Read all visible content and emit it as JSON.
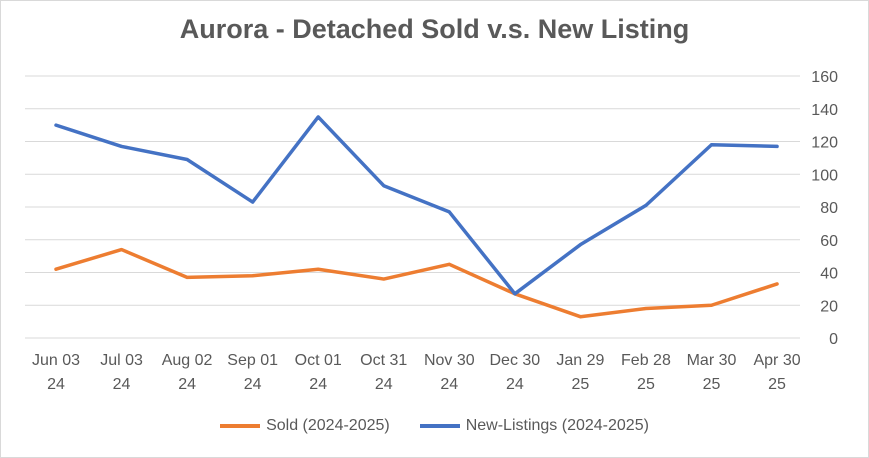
{
  "chart_data": {
    "type": "line",
    "title": "Aurora  - Detached Sold v.s. New Listing",
    "categories": [
      [
        "Jun 03",
        "24"
      ],
      [
        "Jul 03",
        "24"
      ],
      [
        "Aug 02",
        "24"
      ],
      [
        "Sep 01",
        "24"
      ],
      [
        "Oct 01",
        "24"
      ],
      [
        "Oct 31",
        "24"
      ],
      [
        "Nov 30",
        "24"
      ],
      [
        "Dec 30",
        "24"
      ],
      [
        "Jan 29",
        "25"
      ],
      [
        "Feb 28",
        "25"
      ],
      [
        "Mar 30",
        "25"
      ],
      [
        "Apr 30",
        "25"
      ]
    ],
    "ylim": [
      0,
      160
    ],
    "yticks": [
      0,
      20,
      40,
      60,
      80,
      100,
      120,
      140,
      160
    ],
    "y_axis_side": "right",
    "grid": true,
    "legend_position": "bottom",
    "series": [
      {
        "name": "Sold (2024-2025)",
        "color": "#ED7D31",
        "values": [
          42,
          54,
          37,
          38,
          42,
          36,
          45,
          27,
          13,
          18,
          20,
          33
        ]
      },
      {
        "name": "New-Listings (2024-2025)",
        "color": "#4472C4",
        "values": [
          130,
          117,
          109,
          83,
          135,
          93,
          77,
          27,
          57,
          81,
          118,
          117
        ]
      }
    ]
  }
}
